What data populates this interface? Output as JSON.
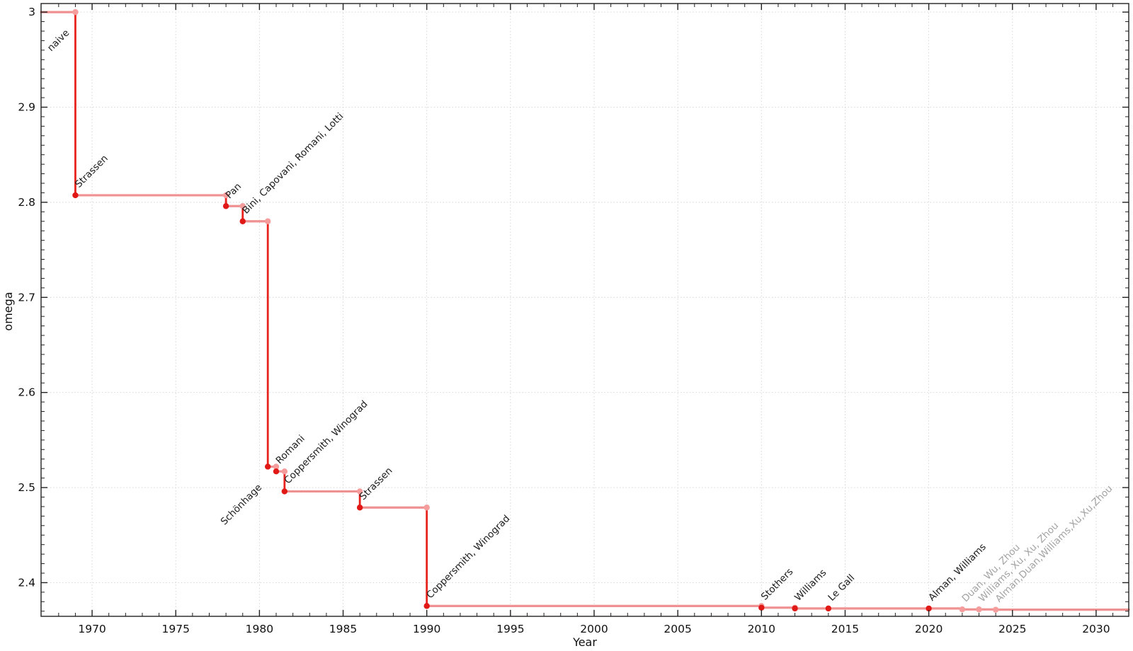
{
  "chart_data": {
    "type": "line",
    "subtype": "step-post",
    "title": "",
    "xlabel": "Year",
    "ylabel": "omega",
    "xlim": [
      1966.95,
      2031.95
    ],
    "ylim": [
      2.3646,
      3.009
    ],
    "x_tick_values": [
      1970,
      1975,
      1980,
      1985,
      1990,
      1995,
      2000,
      2005,
      2010,
      2015,
      2020,
      2025,
      2030
    ],
    "x_tick_labels": [
      "1970",
      "1975",
      "1980",
      "1985",
      "1990",
      "1995",
      "2000",
      "2005",
      "2010",
      "2015",
      "2020",
      "2025",
      "2030"
    ],
    "x_minor_step": 1,
    "y_tick_values": [
      2.4,
      2.5,
      2.6,
      2.7,
      2.8,
      2.9,
      3
    ],
    "y_tick_labels": [
      "2.4",
      "2.5",
      "2.6",
      "2.7",
      "2.8",
      "2.9",
      "3"
    ],
    "y_minor_step": 0.01,
    "grid": {
      "show": true,
      "style": "dotted",
      "at": "major-ticks"
    },
    "legend": "none",
    "baseline": {
      "label": "naive",
      "omega": 3,
      "label_side": "below"
    },
    "events": [
      {
        "label": "Strassen",
        "year": 1969,
        "omega": 2.8074,
        "label_side": "above",
        "faded": false
      },
      {
        "label": "Pan",
        "year": 1978,
        "omega": 2.796,
        "label_side": "above",
        "faded": false
      },
      {
        "label": "Bini, Capovani, Romani, Lotti",
        "year": 1979,
        "omega": 2.78,
        "label_side": "above",
        "faded": false
      },
      {
        "label": "Schönhage",
        "year": 1980.5,
        "omega": 2.522,
        "label_side": "below",
        "faded": false
      },
      {
        "label": "Romani",
        "year": 1981,
        "omega": 2.517,
        "label_side": "above",
        "faded": false
      },
      {
        "label": "Coppersmith, Winograd",
        "year": 1981.5,
        "omega": 2.496,
        "label_side": "above",
        "faded": false
      },
      {
        "label": "Strassen",
        "year": 1986,
        "omega": 2.479,
        "label_side": "above",
        "faded": false
      },
      {
        "label": "Coppersmith, Winograd",
        "year": 1990,
        "omega": 2.3755,
        "label_side": "above",
        "faded": false
      },
      {
        "label": "Stothers",
        "year": 2010,
        "omega": 2.3737,
        "label_side": "above",
        "faded": false
      },
      {
        "label": "Williams",
        "year": 2012,
        "omega": 2.3729,
        "label_side": "above",
        "faded": false
      },
      {
        "label": "Le Gall",
        "year": 2014,
        "omega": 2.3728639,
        "label_side": "above",
        "faded": false
      },
      {
        "label": "Alman, Williams",
        "year": 2020,
        "omega": 2.3728596,
        "label_side": "above",
        "faded": false
      },
      {
        "label": "Duan, Wu, Zhou",
        "year": 2022,
        "omega": 2.37188,
        "label_side": "above",
        "faded": true
      },
      {
        "label": "Williams, Xu, Xu, Zhou",
        "year": 2023,
        "omega": 2.371866,
        "label_side": "above",
        "faded": true
      },
      {
        "label": "Alman,Duan,Williams,Xu,Xu,Zhou",
        "year": 2024,
        "omega": 2.371552,
        "label_side": "above",
        "faded": true
      }
    ],
    "line_extends_to_xmax": true
  },
  "colors": {
    "step_line_pink": "#f09191",
    "drop_line_red": "#e8231d",
    "marker_red": "#e01916",
    "marker_pink": "#f59c9c",
    "label_dark": "#1b1b1b",
    "label_faded": "#a3a3a3",
    "axis_frame": "#222222",
    "grid": "#d2d2d2",
    "tick_text": "#111111",
    "background": "#ffffff"
  }
}
